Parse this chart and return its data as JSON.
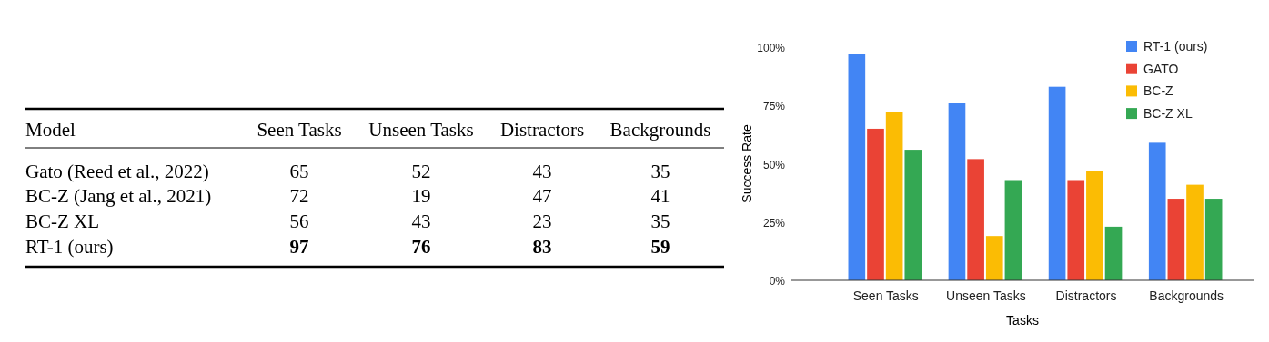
{
  "chart_data": [
    {
      "type": "other",
      "ylabel": "Model",
      "categories": [
        "Seen Tasks",
        "Unseen Tasks",
        "Distractors",
        "Backgrounds"
      ],
      "y_categories": [
        "Gato (Reed et al., 2022)",
        "BC-Z (Jang et al., 2021)",
        "BC-Z XL",
        "RT-1 (ours)"
      ],
      "cell_labels": [
        [
          "65",
          "52",
          "43",
          "35"
        ],
        [
          "72",
          "19",
          "47",
          "41"
        ],
        [
          "56",
          "43",
          "23",
          "35"
        ],
        [
          "97",
          "76",
          "83",
          "59"
        ]
      ]
    },
    {
      "type": "bar",
      "xlabel": "Tasks",
      "ylabel": "Success Rate",
      "categories": [
        "Seen Tasks",
        "Unseen Tasks",
        "Distractors",
        "Backgrounds"
      ],
      "series": [
        {
          "name": "RT-1 (ours)",
          "color": "#4285f4",
          "values": [
            97,
            76,
            83,
            59
          ]
        },
        {
          "name": "GATO",
          "color": "#ea4335",
          "values": [
            65,
            52,
            43,
            35
          ]
        },
        {
          "name": "BC-Z",
          "color": "#fbbc04",
          "values": [
            72,
            19,
            47,
            41
          ]
        },
        {
          "name": "BC-Z XL",
          "color": "#34a853",
          "values": [
            56,
            43,
            23,
            35
          ]
        }
      ],
      "ylim": [
        0,
        100
      ],
      "yticks": [
        {
          "value": 0,
          "label": "0%"
        },
        {
          "value": 25,
          "label": "25%"
        },
        {
          "value": 50,
          "label": "50%"
        },
        {
          "value": 75,
          "label": "75%"
        },
        {
          "value": 100,
          "label": "100%"
        }
      ],
      "legend": "top right"
    }
  ]
}
